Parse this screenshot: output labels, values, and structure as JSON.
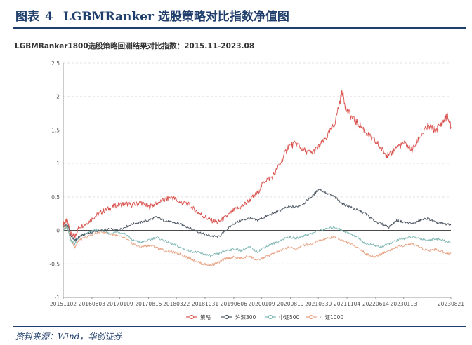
{
  "figure": {
    "label": "图表",
    "number": "4",
    "title": "LGBMRanker 选股策略对比指数净值图"
  },
  "source": "资料来源：Wind，华创证券",
  "colors": {
    "accent": "#1f3e6b",
    "strategy": "#d9534f",
    "hs300": "#4a5561",
    "zz500": "#7fb7b4",
    "zz1000": "#e7a384"
  },
  "chart_data": {
    "type": "line",
    "title": "LGBMRanker1800选股策略回测结果对比指数：2015.11-2023.08",
    "xlabel": "",
    "ylabel": "",
    "ylim": [
      -1,
      2.5
    ],
    "yticks": [
      "-1",
      "-0.5",
      "0",
      "0.5",
      "1",
      "1.5",
      "2",
      "2.5"
    ],
    "ytick_values": [
      -1,
      -0.5,
      0,
      0.5,
      1,
      1.5,
      2,
      2.5
    ],
    "x_tick_labels": [
      "20151102",
      "20160603",
      "20170109",
      "20170815",
      "20180322",
      "20181031",
      "20190606",
      "20200109",
      "20200819",
      "20210330",
      "20211104",
      "20220614",
      "20230113",
      "20230821"
    ],
    "x_tick_positions": [
      0,
      0.074,
      0.146,
      0.22,
      0.292,
      0.366,
      0.44,
      0.512,
      0.586,
      0.658,
      0.732,
      0.806,
      0.878,
      1.0
    ],
    "grid": "horizontal-dashed",
    "legend_position": "bottom-center",
    "series": [
      {
        "name": "策略",
        "color_key": "strategy",
        "points": [
          [
            0,
            0.1
          ],
          [
            0.01,
            0.15
          ],
          [
            0.02,
            -0.05
          ],
          [
            0.03,
            -0.1
          ],
          [
            0.04,
            0.05
          ],
          [
            0.06,
            0.1
          ],
          [
            0.08,
            0.2
          ],
          [
            0.1,
            0.28
          ],
          [
            0.12,
            0.33
          ],
          [
            0.14,
            0.38
          ],
          [
            0.16,
            0.4
          ],
          [
            0.18,
            0.38
          ],
          [
            0.2,
            0.42
          ],
          [
            0.22,
            0.35
          ],
          [
            0.24,
            0.4
          ],
          [
            0.26,
            0.45
          ],
          [
            0.28,
            0.5
          ],
          [
            0.3,
            0.42
          ],
          [
            0.32,
            0.4
          ],
          [
            0.34,
            0.3
          ],
          [
            0.36,
            0.22
          ],
          [
            0.38,
            0.15
          ],
          [
            0.4,
            0.12
          ],
          [
            0.42,
            0.2
          ],
          [
            0.44,
            0.3
          ],
          [
            0.46,
            0.35
          ],
          [
            0.48,
            0.45
          ],
          [
            0.5,
            0.55
          ],
          [
            0.52,
            0.75
          ],
          [
            0.54,
            0.8
          ],
          [
            0.56,
            1.0
          ],
          [
            0.58,
            1.25
          ],
          [
            0.6,
            1.3
          ],
          [
            0.62,
            1.2
          ],
          [
            0.64,
            1.15
          ],
          [
            0.66,
            1.25
          ],
          [
            0.68,
            1.4
          ],
          [
            0.7,
            1.6
          ],
          [
            0.72,
            2.08
          ],
          [
            0.73,
            1.8
          ],
          [
            0.75,
            1.65
          ],
          [
            0.77,
            1.55
          ],
          [
            0.79,
            1.4
          ],
          [
            0.81,
            1.3
          ],
          [
            0.83,
            1.15
          ],
          [
            0.84,
            1.1
          ],
          [
            0.86,
            1.25
          ],
          [
            0.88,
            1.3
          ],
          [
            0.9,
            1.2
          ],
          [
            0.92,
            1.4
          ],
          [
            0.94,
            1.55
          ],
          [
            0.96,
            1.5
          ],
          [
            0.98,
            1.62
          ],
          [
            0.99,
            1.72
          ],
          [
            1.0,
            1.55
          ]
        ]
      },
      {
        "name": "沪深300",
        "color_key": "hs300",
        "points": [
          [
            0,
            0.05
          ],
          [
            0.01,
            0.1
          ],
          [
            0.02,
            -0.08
          ],
          [
            0.03,
            -0.15
          ],
          [
            0.04,
            -0.1
          ],
          [
            0.06,
            -0.05
          ],
          [
            0.08,
            -0.02
          ],
          [
            0.1,
            0.0
          ],
          [
            0.12,
            0.02
          ],
          [
            0.14,
            0.0
          ],
          [
            0.16,
            0.05
          ],
          [
            0.18,
            0.1
          ],
          [
            0.2,
            0.12
          ],
          [
            0.22,
            0.15
          ],
          [
            0.24,
            0.2
          ],
          [
            0.26,
            0.15
          ],
          [
            0.28,
            0.12
          ],
          [
            0.3,
            0.1
          ],
          [
            0.32,
            0.05
          ],
          [
            0.34,
            0.0
          ],
          [
            0.36,
            -0.05
          ],
          [
            0.38,
            -0.08
          ],
          [
            0.4,
            -0.1
          ],
          [
            0.42,
            0.0
          ],
          [
            0.44,
            0.1
          ],
          [
            0.46,
            0.15
          ],
          [
            0.48,
            0.18
          ],
          [
            0.5,
            0.15
          ],
          [
            0.52,
            0.2
          ],
          [
            0.54,
            0.25
          ],
          [
            0.56,
            0.3
          ],
          [
            0.58,
            0.35
          ],
          [
            0.6,
            0.35
          ],
          [
            0.62,
            0.4
          ],
          [
            0.64,
            0.5
          ],
          [
            0.66,
            0.62
          ],
          [
            0.68,
            0.55
          ],
          [
            0.7,
            0.5
          ],
          [
            0.72,
            0.4
          ],
          [
            0.74,
            0.35
          ],
          [
            0.76,
            0.3
          ],
          [
            0.78,
            0.25
          ],
          [
            0.8,
            0.15
          ],
          [
            0.82,
            0.1
          ],
          [
            0.84,
            0.05
          ],
          [
            0.86,
            0.15
          ],
          [
            0.88,
            0.12
          ],
          [
            0.9,
            0.1
          ],
          [
            0.92,
            0.15
          ],
          [
            0.94,
            0.18
          ],
          [
            0.96,
            0.12
          ],
          [
            0.98,
            0.1
          ],
          [
            1.0,
            0.08
          ]
        ]
      },
      {
        "name": "中证500",
        "color_key": "zz500",
        "points": [
          [
            0,
            0.0
          ],
          [
            0.01,
            0.05
          ],
          [
            0.02,
            -0.15
          ],
          [
            0.03,
            -0.2
          ],
          [
            0.04,
            -0.1
          ],
          [
            0.06,
            -0.05
          ],
          [
            0.08,
            0.0
          ],
          [
            0.1,
            0.0
          ],
          [
            0.12,
            -0.05
          ],
          [
            0.14,
            -0.02
          ],
          [
            0.16,
            -0.05
          ],
          [
            0.18,
            -0.15
          ],
          [
            0.2,
            -0.18
          ],
          [
            0.22,
            -0.15
          ],
          [
            0.24,
            -0.1
          ],
          [
            0.26,
            -0.15
          ],
          [
            0.28,
            -0.2
          ],
          [
            0.3,
            -0.25
          ],
          [
            0.32,
            -0.3
          ],
          [
            0.34,
            -0.32
          ],
          [
            0.36,
            -0.35
          ],
          [
            0.38,
            -0.38
          ],
          [
            0.4,
            -0.35
          ],
          [
            0.42,
            -0.3
          ],
          [
            0.44,
            -0.28
          ],
          [
            0.46,
            -0.3
          ],
          [
            0.48,
            -0.25
          ],
          [
            0.5,
            -0.32
          ],
          [
            0.52,
            -0.25
          ],
          [
            0.54,
            -0.2
          ],
          [
            0.56,
            -0.15
          ],
          [
            0.58,
            -0.1
          ],
          [
            0.6,
            -0.12
          ],
          [
            0.62,
            -0.08
          ],
          [
            0.64,
            -0.05
          ],
          [
            0.66,
            0.0
          ],
          [
            0.68,
            0.02
          ],
          [
            0.7,
            0.05
          ],
          [
            0.72,
            0.0
          ],
          [
            0.74,
            -0.05
          ],
          [
            0.76,
            -0.1
          ],
          [
            0.78,
            -0.2
          ],
          [
            0.8,
            -0.22
          ],
          [
            0.82,
            -0.25
          ],
          [
            0.84,
            -0.2
          ],
          [
            0.86,
            -0.15
          ],
          [
            0.88,
            -0.12
          ],
          [
            0.9,
            -0.1
          ],
          [
            0.92,
            -0.12
          ],
          [
            0.94,
            -0.15
          ],
          [
            0.96,
            -0.12
          ],
          [
            0.98,
            -0.15
          ],
          [
            1.0,
            -0.18
          ]
        ]
      },
      {
        "name": "中证1000",
        "color_key": "zz1000",
        "points": [
          [
            0,
            0.0
          ],
          [
            0.01,
            0.08
          ],
          [
            0.02,
            -0.15
          ],
          [
            0.03,
            -0.25
          ],
          [
            0.04,
            -0.15
          ],
          [
            0.06,
            -0.1
          ],
          [
            0.08,
            -0.05
          ],
          [
            0.1,
            -0.02
          ],
          [
            0.12,
            -0.05
          ],
          [
            0.14,
            -0.08
          ],
          [
            0.16,
            -0.12
          ],
          [
            0.18,
            -0.2
          ],
          [
            0.2,
            -0.25
          ],
          [
            0.22,
            -0.22
          ],
          [
            0.24,
            -0.25
          ],
          [
            0.26,
            -0.3
          ],
          [
            0.28,
            -0.32
          ],
          [
            0.3,
            -0.35
          ],
          [
            0.32,
            -0.4
          ],
          [
            0.34,
            -0.45
          ],
          [
            0.36,
            -0.5
          ],
          [
            0.38,
            -0.52
          ],
          [
            0.4,
            -0.48
          ],
          [
            0.42,
            -0.42
          ],
          [
            0.44,
            -0.4
          ],
          [
            0.46,
            -0.42
          ],
          [
            0.48,
            -0.38
          ],
          [
            0.5,
            -0.45
          ],
          [
            0.52,
            -0.4
          ],
          [
            0.54,
            -0.35
          ],
          [
            0.56,
            -0.3
          ],
          [
            0.58,
            -0.25
          ],
          [
            0.6,
            -0.28
          ],
          [
            0.62,
            -0.22
          ],
          [
            0.64,
            -0.2
          ],
          [
            0.66,
            -0.15
          ],
          [
            0.68,
            -0.12
          ],
          [
            0.7,
            -0.1
          ],
          [
            0.72,
            -0.15
          ],
          [
            0.74,
            -0.2
          ],
          [
            0.76,
            -0.25
          ],
          [
            0.78,
            -0.35
          ],
          [
            0.8,
            -0.4
          ],
          [
            0.82,
            -0.35
          ],
          [
            0.84,
            -0.3
          ],
          [
            0.86,
            -0.25
          ],
          [
            0.88,
            -0.22
          ],
          [
            0.9,
            -0.2
          ],
          [
            0.92,
            -0.25
          ],
          [
            0.94,
            -0.3
          ],
          [
            0.96,
            -0.28
          ],
          [
            0.98,
            -0.32
          ],
          [
            1.0,
            -0.35
          ]
        ]
      }
    ]
  }
}
